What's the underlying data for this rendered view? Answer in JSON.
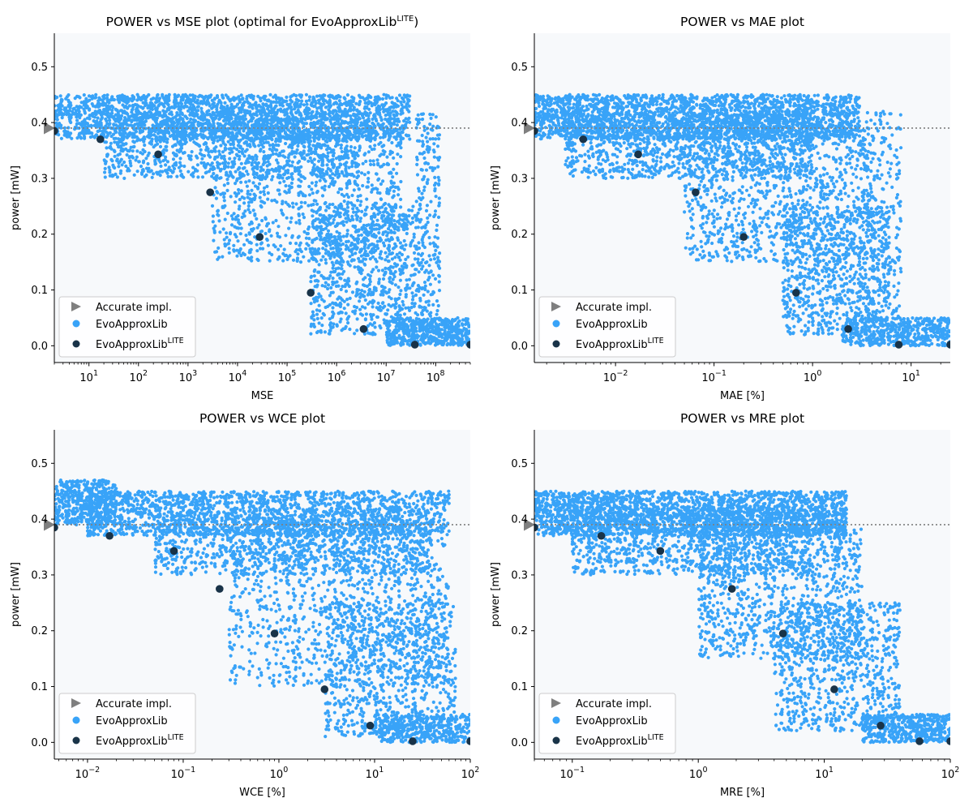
{
  "colors": {
    "evo": "#38a3f8",
    "lite": "#193348",
    "accurate": "#7f7f7f",
    "plot_bg": "#f7f9fb"
  },
  "legend": {
    "accurate": "Accurate impl.",
    "evo": "EvoApproxLib",
    "lite_base": "EvoApproxLib",
    "lite_sup": "LITE"
  },
  "chart_data": [
    {
      "type": "scatter",
      "title": "POWER vs MSE plot (optimal for EvoApproxLib",
      "title_sup": "LITE",
      "title_end": ")",
      "xlabel": "MSE",
      "ylabel": "power [mW]",
      "xscale": "log",
      "xlim": [
        2,
        500000000
      ],
      "ylim": [
        -0.03,
        0.56
      ],
      "yticks": [
        "0.0",
        "0.1",
        "0.2",
        "0.3",
        "0.4",
        "0.5"
      ],
      "xticks": [
        {
          "base": "10",
          "exp": "1"
        },
        {
          "base": "10",
          "exp": "2"
        },
        {
          "base": "10",
          "exp": "3"
        },
        {
          "base": "10",
          "exp": "4"
        },
        {
          "base": "10",
          "exp": "5"
        },
        {
          "base": "10",
          "exp": "6"
        },
        {
          "base": "10",
          "exp": "7"
        },
        {
          "base": "10",
          "exp": "8"
        }
      ],
      "accurate_power": 0.39,
      "lite_points": [
        [
          2,
          0.385
        ],
        [
          17,
          0.37
        ],
        [
          250,
          0.343
        ],
        [
          2800,
          0.275
        ],
        [
          28000,
          0.195
        ],
        [
          300000,
          0.095
        ],
        [
          3500000,
          0.03
        ],
        [
          38000000,
          0.002
        ],
        [
          500000000,
          0.002
        ]
      ],
      "evo_clusters": [
        {
          "x": [
            2,
            30000000
          ],
          "y": [
            0.37,
            0.45
          ],
          "n": 2200
        },
        {
          "x": [
            20,
            3000000
          ],
          "y": [
            0.3,
            0.42
          ],
          "n": 1100
        },
        {
          "x": [
            3000,
            20000000
          ],
          "y": [
            0.15,
            0.39
          ],
          "n": 1000
        },
        {
          "x": [
            300000,
            40000000
          ],
          "y": [
            0.02,
            0.25
          ],
          "n": 800
        },
        {
          "x": [
            10000000,
            500000000
          ],
          "y": [
            0.0,
            0.05
          ],
          "n": 500
        },
        {
          "x": [
            40000000,
            120000000
          ],
          "y": [
            0.05,
            0.42
          ],
          "n": 250
        }
      ]
    },
    {
      "type": "scatter",
      "title": "POWER vs MAE plot",
      "xlabel": "MAE [%]",
      "ylabel": "power [mW]",
      "xscale": "log",
      "xlim": [
        0.0015,
        25
      ],
      "ylim": [
        -0.03,
        0.56
      ],
      "yticks": [
        "0.0",
        "0.1",
        "0.2",
        "0.3",
        "0.4",
        "0.5"
      ],
      "xticks": [
        {
          "base": "10",
          "exp": "−2"
        },
        {
          "base": "10",
          "exp": "−1"
        },
        {
          "base": "10",
          "exp": "0"
        },
        {
          "base": "10",
          "exp": "1"
        }
      ],
      "accurate_power": 0.39,
      "lite_points": [
        [
          0.0015,
          0.385
        ],
        [
          0.0047,
          0.37
        ],
        [
          0.017,
          0.343
        ],
        [
          0.065,
          0.275
        ],
        [
          0.2,
          0.195
        ],
        [
          0.68,
          0.095
        ],
        [
          2.3,
          0.03
        ],
        [
          7.5,
          0.002
        ],
        [
          25,
          0.002
        ]
      ],
      "evo_clusters": [
        {
          "x": [
            0.0015,
            3
          ],
          "y": [
            0.37,
            0.45
          ],
          "n": 2200
        },
        {
          "x": [
            0.003,
            1
          ],
          "y": [
            0.3,
            0.42
          ],
          "n": 1100
        },
        {
          "x": [
            0.05,
            4
          ],
          "y": [
            0.15,
            0.39
          ],
          "n": 1000
        },
        {
          "x": [
            0.5,
            6
          ],
          "y": [
            0.02,
            0.25
          ],
          "n": 800
        },
        {
          "x": [
            2,
            25
          ],
          "y": [
            0.0,
            0.05
          ],
          "n": 500
        },
        {
          "x": [
            3,
            8
          ],
          "y": [
            0.05,
            0.42
          ],
          "n": 250
        }
      ]
    },
    {
      "type": "scatter",
      "title": "POWER vs WCE plot",
      "xlabel": "WCE [%]",
      "ylabel": "power [mW]",
      "xscale": "log",
      "xlim": [
        0.0045,
        100
      ],
      "ylim": [
        -0.03,
        0.56
      ],
      "yticks": [
        "0.0",
        "0.1",
        "0.2",
        "0.3",
        "0.4",
        "0.5"
      ],
      "xticks": [
        {
          "base": "10",
          "exp": "−2"
        },
        {
          "base": "10",
          "exp": "−1"
        },
        {
          "base": "10",
          "exp": "0"
        },
        {
          "base": "10",
          "exp": "1"
        },
        {
          "base": "10",
          "exp": "2"
        }
      ],
      "accurate_power": 0.39,
      "lite_points": [
        [
          0.0045,
          0.385
        ],
        [
          0.017,
          0.37
        ],
        [
          0.08,
          0.343
        ],
        [
          0.24,
          0.275
        ],
        [
          0.9,
          0.195
        ],
        [
          3.0,
          0.095
        ],
        [
          9.0,
          0.03
        ],
        [
          25,
          0.002
        ],
        [
          100,
          0.002
        ]
      ],
      "evo_clusters": [
        {
          "x": [
            0.0045,
            0.02
          ],
          "y": [
            0.39,
            0.47
          ],
          "n": 500
        },
        {
          "x": [
            0.01,
            60
          ],
          "y": [
            0.37,
            0.45
          ],
          "n": 1800
        },
        {
          "x": [
            0.05,
            40
          ],
          "y": [
            0.3,
            0.4
          ],
          "n": 900
        },
        {
          "x": [
            0.3,
            60
          ],
          "y": [
            0.1,
            0.38
          ],
          "n": 1000
        },
        {
          "x": [
            3,
            70
          ],
          "y": [
            0.01,
            0.25
          ],
          "n": 800
        },
        {
          "x": [
            10,
            100
          ],
          "y": [
            0.0,
            0.05
          ],
          "n": 400
        }
      ]
    },
    {
      "type": "scatter",
      "title": "POWER vs MRE plot",
      "xlabel": "MRE [%]",
      "ylabel": "power [mW]",
      "xscale": "log",
      "xlim": [
        0.05,
        100
      ],
      "ylim": [
        -0.03,
        0.56
      ],
      "yticks": [
        "0.0",
        "0.1",
        "0.2",
        "0.3",
        "0.4",
        "0.5"
      ],
      "xticks": [
        {
          "base": "10",
          "exp": "−1"
        },
        {
          "base": "10",
          "exp": "0"
        },
        {
          "base": "10",
          "exp": "1"
        },
        {
          "base": "10",
          "exp": "2"
        }
      ],
      "accurate_power": 0.39,
      "lite_points": [
        [
          0.05,
          0.385
        ],
        [
          0.17,
          0.37
        ],
        [
          0.5,
          0.343
        ],
        [
          1.85,
          0.275
        ],
        [
          4.7,
          0.195
        ],
        [
          12,
          0.095
        ],
        [
          28,
          0.03
        ],
        [
          57,
          0.002
        ],
        [
          100,
          0.002
        ]
      ],
      "evo_clusters": [
        {
          "x": [
            0.05,
            15
          ],
          "y": [
            0.37,
            0.45
          ],
          "n": 2200
        },
        {
          "x": [
            0.1,
            8
          ],
          "y": [
            0.3,
            0.42
          ],
          "n": 1000
        },
        {
          "x": [
            1,
            20
          ],
          "y": [
            0.15,
            0.39
          ],
          "n": 1000
        },
        {
          "x": [
            4,
            40
          ],
          "y": [
            0.02,
            0.25
          ],
          "n": 800
        },
        {
          "x": [
            20,
            100
          ],
          "y": [
            0.0,
            0.05
          ],
          "n": 500
        }
      ]
    }
  ]
}
